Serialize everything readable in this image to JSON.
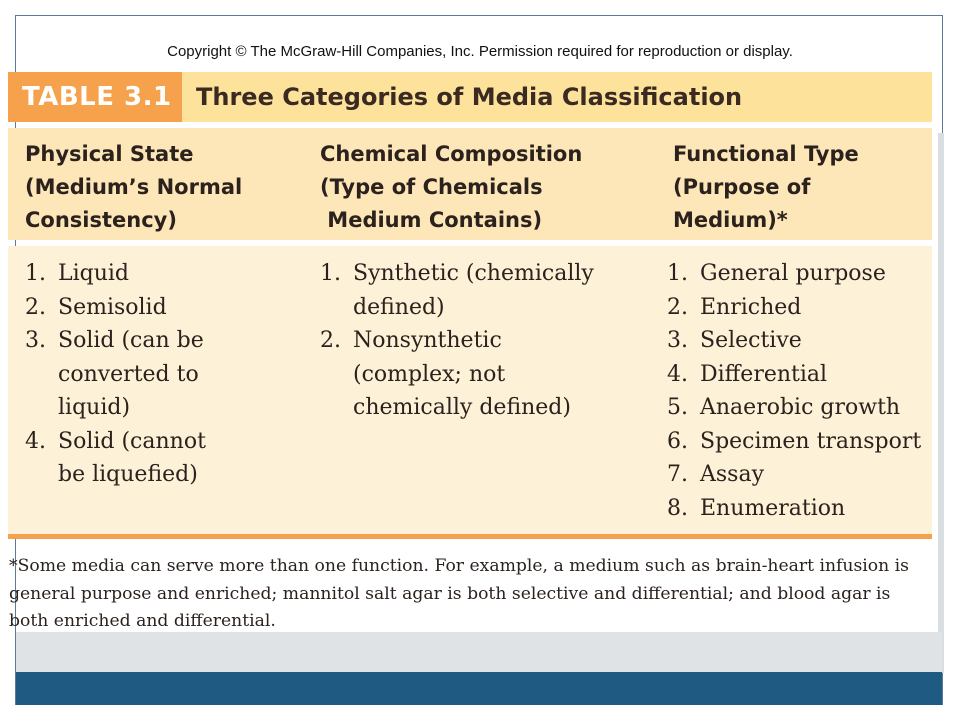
{
  "copyright": "Copyright © The McGraw-Hill Companies, Inc. Permission required for reproduction or display.",
  "table": {
    "label": "TABLE 3.1",
    "title": "Three Categories of Media Classification"
  },
  "columns": [
    {
      "heading": "Physical State\n(Medium’s Normal\nConsistency)",
      "items": [
        {
          "num": "1.",
          "text": "Liquid"
        },
        {
          "num": "2.",
          "text": "Semisolid"
        },
        {
          "num": "3.",
          "text": "Solid (can be converted to liquid)"
        },
        {
          "num": "4.",
          "text": "Solid (cannot be liquefied)"
        }
      ]
    },
    {
      "heading": "Chemical Composition\n(Type of Chemicals\n Medium Contains)",
      "items": [
        {
          "num": "1.",
          "text": "Synthetic (chemically defined)"
        },
        {
          "num": "2.",
          "text": "Nonsynthetic (complex; not chemically defined)"
        }
      ]
    },
    {
      "heading": "Functional Type\n(Purpose of\nMedium)*",
      "items": [
        {
          "num": "1.",
          "text": "General purpose"
        },
        {
          "num": "2.",
          "text": "Enriched"
        },
        {
          "num": "3.",
          "text": "Selective"
        },
        {
          "num": "4.",
          "text": "Differential"
        },
        {
          "num": "5.",
          "text": "Anaerobic growth"
        },
        {
          "num": "6.",
          "text": "Specimen transport"
        },
        {
          "num": "7.",
          "text": "Assay"
        },
        {
          "num": "8.",
          "text": "Enumeration"
        }
      ]
    }
  ],
  "footnote": "*Some media can serve more than one function. For example, a medium such as brain-heart infusion is general purpose and enriched; mannitol salt agar is both selective and differential; and blood agar is both enriched and differential."
}
